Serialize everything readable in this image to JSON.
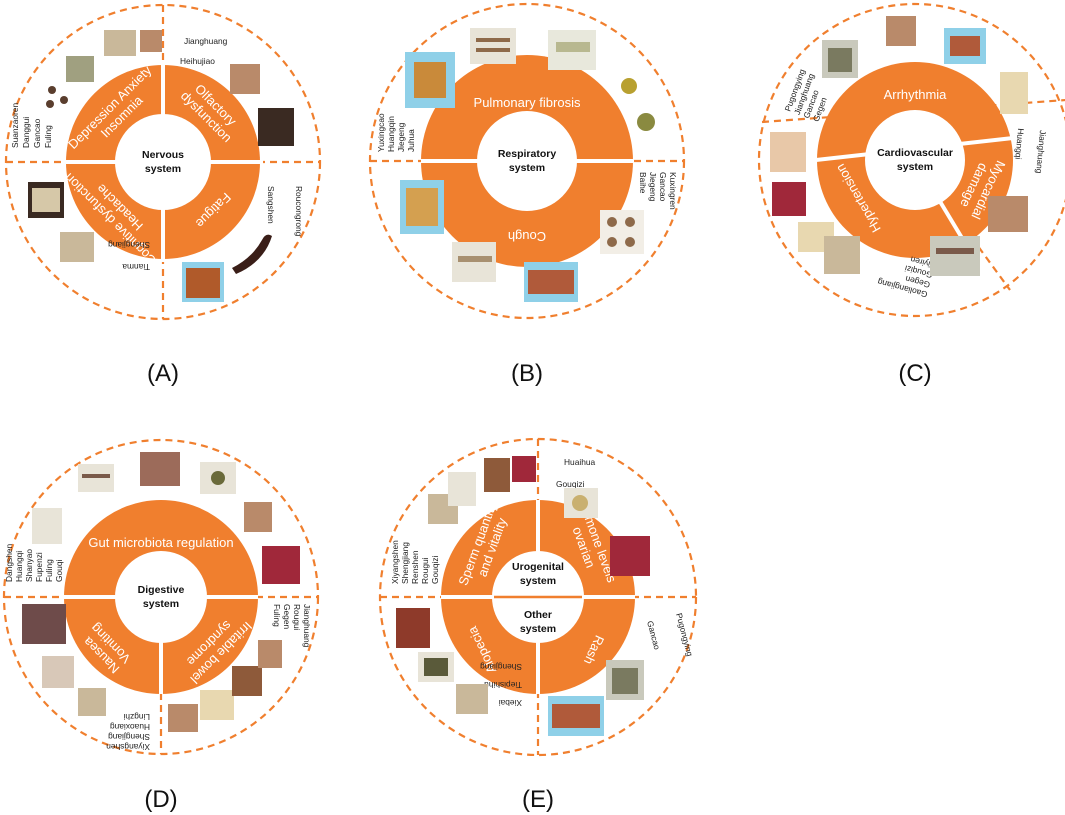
{
  "panels": [
    {
      "id": "A",
      "label": "(A)",
      "center": [
        "Nervous",
        "system"
      ],
      "bands": [
        {
          "lines": [
            "Depression Anxiety",
            "Insomnia"
          ]
        },
        {
          "lines": [
            "Olfactory",
            "dysfunction"
          ]
        },
        {
          "lines": [
            "Cognitive dysfunction",
            "Headache"
          ]
        },
        {
          "lines": [
            "Fatigue"
          ]
        }
      ],
      "herb_groups": [
        {
          "items": [
            "Suanzaoren",
            "Danggui",
            "Gancao",
            "Fuling"
          ]
        },
        {
          "items": [
            "Jianghuang",
            "Heihujiao"
          ]
        },
        {
          "items": [
            "Tianma",
            "Shengjiang"
          ]
        },
        {
          "items": [
            "Roucongrong",
            "Sangshen"
          ]
        }
      ]
    },
    {
      "id": "B",
      "label": "(B)",
      "center": [
        "Respiratory",
        "system"
      ],
      "bands": [
        {
          "lines": [
            "Pulmonary fibrosis"
          ]
        },
        {
          "lines": [
            "Cough"
          ]
        }
      ],
      "herb_groups": [
        {
          "items": [
            "Yuxingcao",
            "Huangqin",
            "Jiegeng",
            "Juhua"
          ]
        },
        {
          "items": [
            "Kuxingren",
            "Gancao",
            "Jiegeng",
            "Baihe"
          ]
        }
      ]
    },
    {
      "id": "C",
      "label": "(C)",
      "center": [
        "Cardiovascular",
        "system"
      ],
      "bands": [
        {
          "lines": [
            "Arrhythmia"
          ]
        },
        {
          "lines": [
            "Hypertension"
          ]
        },
        {
          "lines": [
            "Myocardial",
            "damage"
          ]
        }
      ],
      "herb_groups": [
        {
          "items": [
            "Pugongying",
            "Jianghuang",
            "Gancao",
            "Gegen"
          ]
        },
        {
          "items": [
            "Jianghuang",
            "Huangqi"
          ]
        },
        {
          "items": [
            "Gaoliangjiang",
            "Gegen",
            "Gouqizi",
            "Yiyiren"
          ]
        }
      ]
    },
    {
      "id": "D",
      "label": "(D)",
      "center": [
        "Digestive",
        "system"
      ],
      "bands": [
        {
          "lines": [
            "Gut microbiota regulation"
          ]
        },
        {
          "lines": [
            "Nausea",
            "Vomiting"
          ]
        },
        {
          "lines": [
            "Irritable bowel",
            "syndrome"
          ]
        }
      ],
      "herb_groups": [
        {
          "items": [
            "Dangshen",
            "Huangqi",
            "Shanyao",
            "Fupenzi",
            "Fuling",
            "Gouqi"
          ]
        },
        {
          "items": [
            "Jianghuang",
            "Rougui",
            "Gegen",
            "Fuling"
          ]
        },
        {
          "items": [
            "Xiyangshen",
            "Shengjiang",
            "Huaoxiang",
            "Lingzhi"
          ]
        }
      ]
    },
    {
      "id": "E",
      "label": "(E)",
      "center": [
        "Urogenital",
        "system"
      ],
      "center2": [
        "Other",
        "system"
      ],
      "bands": [
        {
          "lines": [
            "Sperm quantity",
            "and vitality"
          ]
        },
        {
          "lines": [
            "hormone levels",
            "ovarian"
          ]
        },
        {
          "lines": [
            "Alopecia"
          ]
        },
        {
          "lines": [
            "Rash"
          ]
        }
      ],
      "herb_groups": [
        {
          "items": [
            "Xiyangshen",
            "Shengjiang",
            "Renshen",
            "Rougui",
            "Gouqizi"
          ]
        },
        {
          "items": [
            "Huaihua",
            "Gouqizi"
          ]
        },
        {
          "items": [
            "Xiebai",
            "Tiepishihu",
            "Shengjiang"
          ]
        },
        {
          "items": [
            "Pugongying",
            "Gancao"
          ]
        }
      ]
    }
  ],
  "colors": {
    "accent": "#F07F2E",
    "herb_photo_tones": [
      "#9C6B4A",
      "#B98A6A",
      "#6E4B3A",
      "#C9B89A",
      "#8E3A3A",
      "#A0A080",
      "#5A3E2E"
    ],
    "photo_backdrop": "#8FD0E8"
  }
}
